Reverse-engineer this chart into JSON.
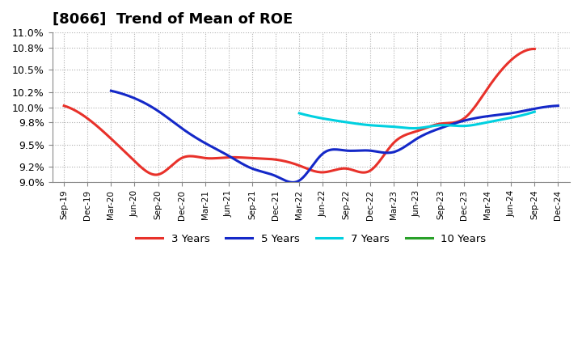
{
  "title": "[8066]  Trend of Mean of ROE",
  "ylim": [
    0.09,
    0.11
  ],
  "yticks": [
    0.09,
    0.092,
    0.095,
    0.098,
    0.1,
    0.102,
    0.105,
    0.108,
    0.11
  ],
  "ytick_labels": [
    "9.0%",
    "9.2%",
    "9.5%",
    "9.8%",
    "10.0%",
    "10.2%",
    "10.5%",
    "10.8%",
    "11.0%"
  ],
  "x_labels": [
    "Sep-19",
    "Dec-19",
    "Mar-20",
    "Jun-20",
    "Sep-20",
    "Dec-20",
    "Mar-21",
    "Jun-21",
    "Sep-21",
    "Dec-21",
    "Mar-22",
    "Jun-22",
    "Sep-22",
    "Dec-22",
    "Mar-23",
    "Jun-23",
    "Sep-23",
    "Dec-23",
    "Mar-24",
    "Jun-24",
    "Sep-24",
    "Dec-24"
  ],
  "series": {
    "3 Years": {
      "color": "#e8312a",
      "values": [
        0.1002,
        0.0985,
        0.0958,
        0.0928,
        0.091,
        0.0932,
        0.0932,
        0.0933,
        0.0932,
        0.093,
        0.0922,
        0.0913,
        0.0918,
        0.0915,
        0.0952,
        0.0968,
        0.0978,
        0.0985,
        0.1025,
        0.1063,
        0.1078,
        null
      ]
    },
    "5 Years": {
      "color": "#1428c8",
      "values": [
        null,
        null,
        0.1022,
        0.1012,
        0.0995,
        0.0972,
        0.0952,
        0.0935,
        0.0918,
        0.0908,
        0.0902,
        0.0938,
        0.0942,
        0.0942,
        0.094,
        0.0958,
        0.0972,
        0.0982,
        0.0988,
        0.0992,
        0.0998,
        0.1002
      ]
    },
    "7 Years": {
      "color": "#00d0e0",
      "values": [
        null,
        null,
        null,
        null,
        null,
        null,
        null,
        null,
        null,
        null,
        0.0992,
        0.0985,
        0.098,
        0.0976,
        0.0974,
        0.0972,
        0.0976,
        0.0975,
        0.098,
        0.0986,
        0.0994,
        null
      ]
    },
    "10 Years": {
      "color": "#28a028",
      "values": [
        null,
        null,
        null,
        null,
        null,
        null,
        null,
        null,
        null,
        null,
        null,
        null,
        null,
        null,
        null,
        null,
        null,
        null,
        null,
        null,
        null,
        null
      ]
    }
  },
  "legend_order": [
    "3 Years",
    "5 Years",
    "7 Years",
    "10 Years"
  ],
  "background_color": "#ffffff",
  "grid_color": "#aaaaaa",
  "title_fontsize": 13
}
